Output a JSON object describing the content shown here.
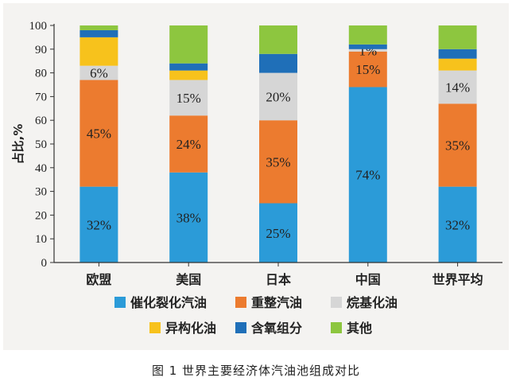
{
  "caption": "图 1 世界主要经济体汽油池组成对比",
  "chart_data": {
    "type": "bar",
    "stacked": true,
    "categories": [
      "欧盟",
      "美国",
      "日本",
      "中国",
      "世界平均"
    ],
    "ylabel": "占比,%",
    "ylim": [
      0,
      100
    ],
    "yticks": [
      0,
      10,
      20,
      30,
      40,
      50,
      60,
      70,
      80,
      90,
      100
    ],
    "legend_position": "bottom",
    "series": [
      {
        "name": "催化裂化汽油",
        "color": "#2b9bd8",
        "values": [
          32,
          38,
          25,
          74,
          32
        ],
        "labels": [
          "32%",
          "38%",
          "25%",
          "74%",
          "32%"
        ]
      },
      {
        "name": "重整汽油",
        "color": "#ec7b2f",
        "values": [
          45,
          24,
          35,
          15,
          35
        ],
        "labels": [
          "45%",
          "24%",
          "35%",
          "15%",
          "35%"
        ]
      },
      {
        "name": "烷基化油",
        "color": "#d6d6d6",
        "values": [
          6,
          15,
          20,
          1,
          14
        ],
        "labels": [
          "6%",
          "15%",
          "20%",
          "1%",
          "14%"
        ]
      },
      {
        "name": "异构化油",
        "color": "#f7c21c",
        "values": [
          12,
          4,
          0,
          0,
          5
        ],
        "labels": [
          "",
          "",
          "",
          "",
          ""
        ]
      },
      {
        "name": "含氧组分",
        "color": "#1f6fb8",
        "values": [
          3,
          3,
          8,
          2,
          4
        ],
        "labels": [
          "",
          "",
          "",
          "",
          ""
        ]
      },
      {
        "name": "其他",
        "color": "#8dc63f",
        "values": [
          2,
          16,
          12,
          8,
          10
        ],
        "labels": [
          "",
          "",
          "",
          "",
          ""
        ]
      }
    ]
  }
}
